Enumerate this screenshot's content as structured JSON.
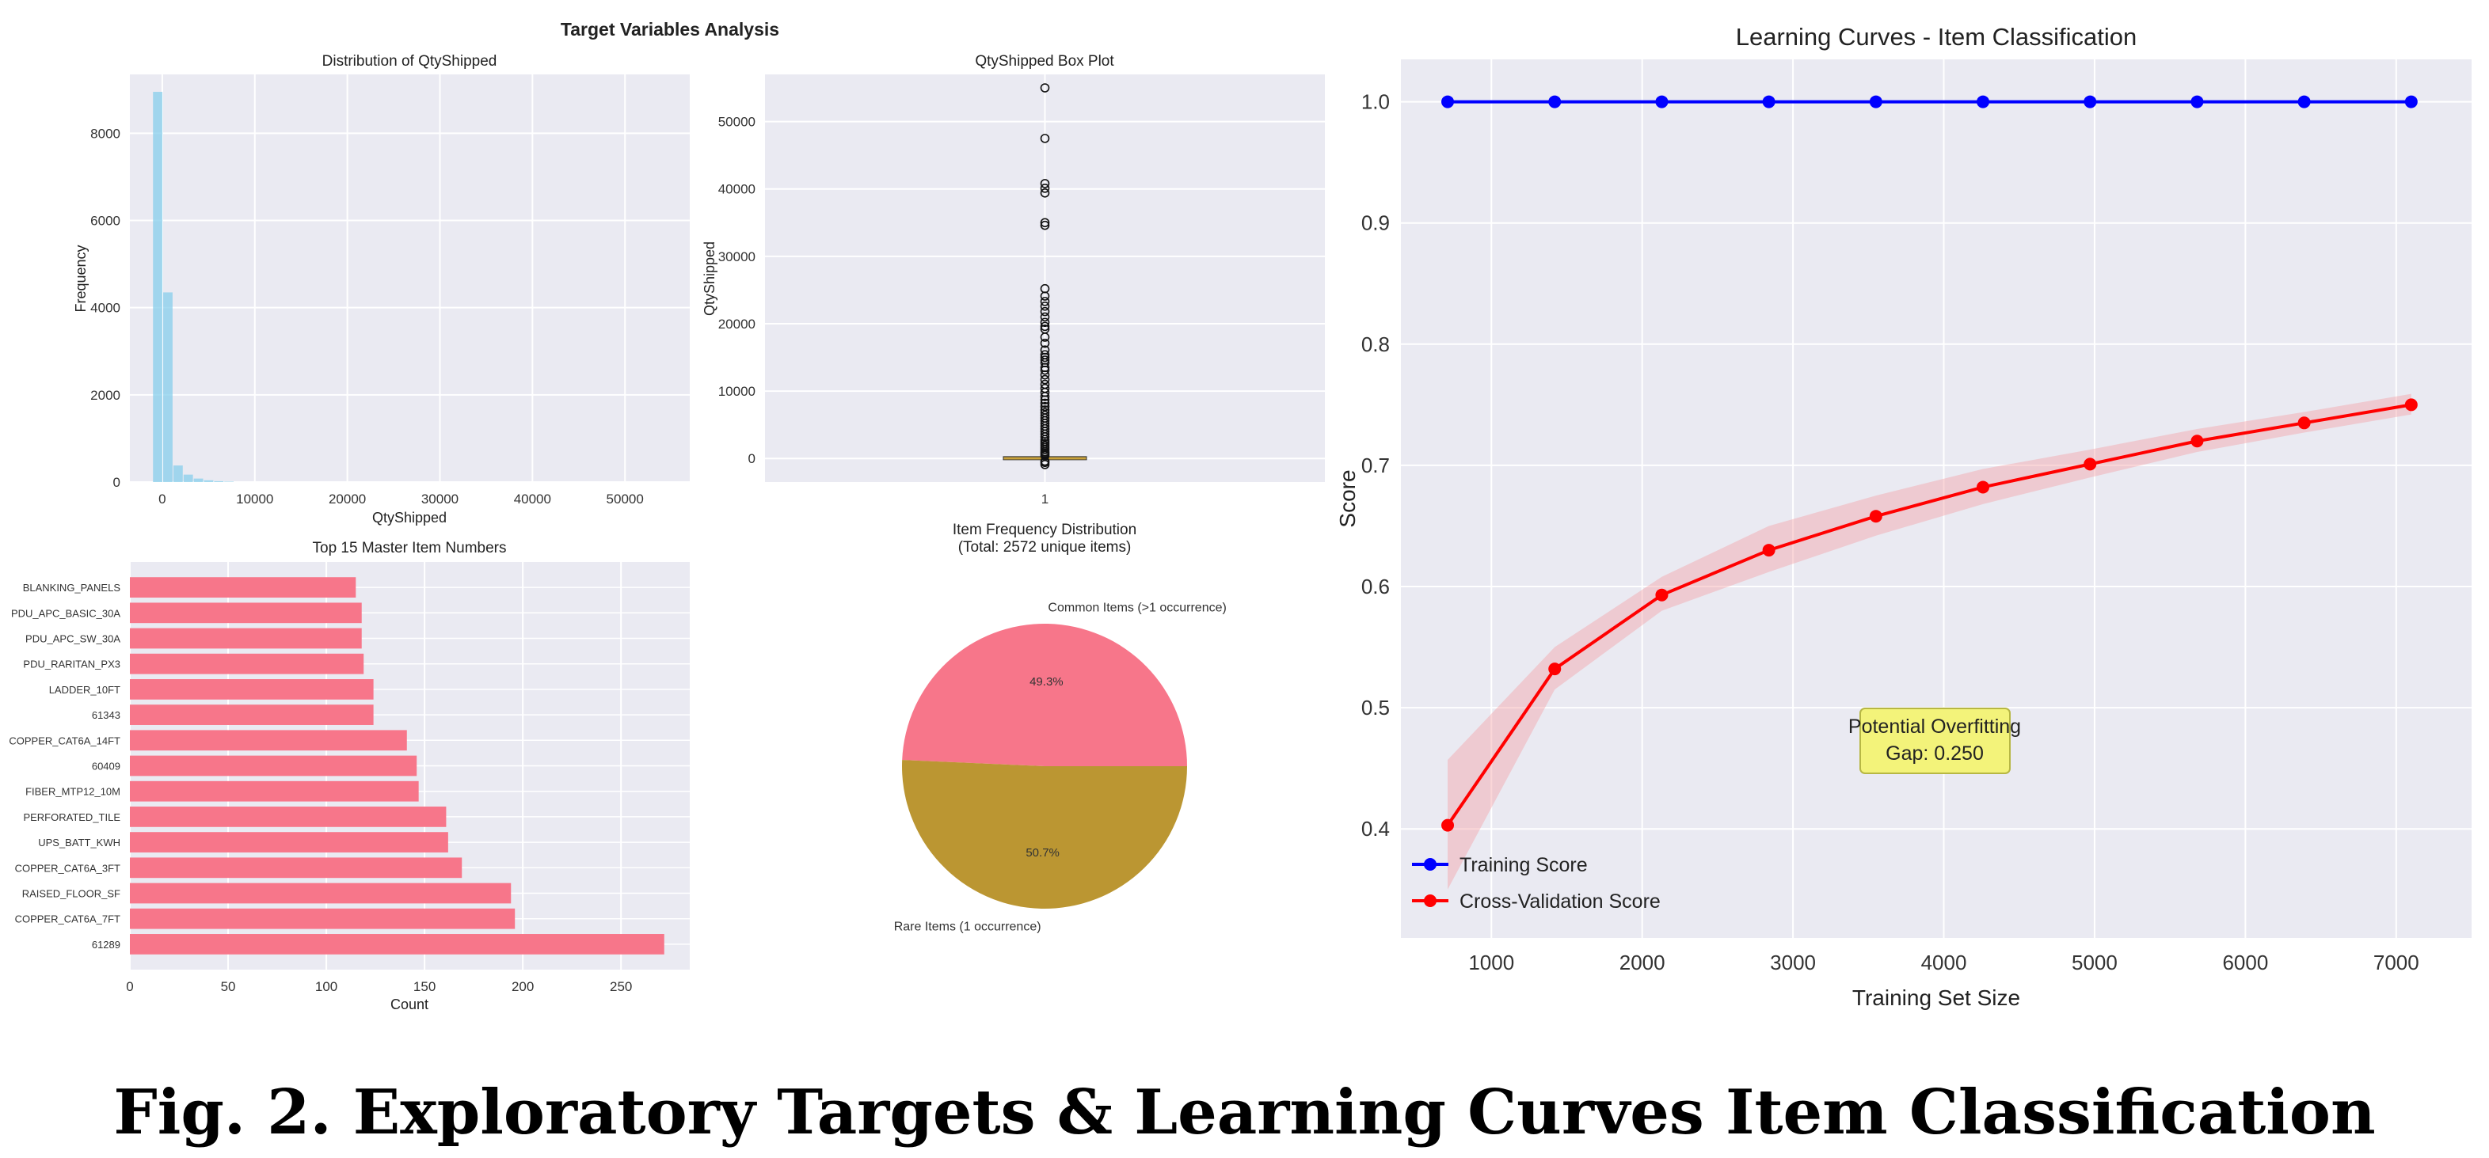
{
  "colors": {
    "panel_bg": "#eaeaf2",
    "grid": "#ffffff",
    "hist": "#87ceeb",
    "box_median": "#c8a13a",
    "barh": "#f7768a",
    "pie": [
      "#f7768a",
      "#bb9632"
    ],
    "train": "#0000ff",
    "cv": "#ff0000",
    "cv_band": "#f4a3a8",
    "annotation_bg": "#f3f37a"
  },
  "figure_title": "Target Variables Analysis",
  "caption": "Fig. 2.  Exploratory Targets & Learning Curves Item Classification",
  "chart_data": [
    {
      "id": "hist",
      "type": "bar",
      "title": "Distribution of QtyShipped",
      "xlabel": "QtyShipped",
      "ylabel": "Frequency",
      "xlim": [
        -3500,
        57000
      ],
      "ylim": [
        0,
        9350
      ],
      "xticks": [
        0,
        10000,
        20000,
        30000,
        40000,
        50000
      ],
      "xtick_labels": [
        "0",
        "10000",
        "20000",
        "30000",
        "40000",
        "50000"
      ],
      "yticks": [
        0,
        2000,
        4000,
        6000,
        8000
      ],
      "ytick_labels": [
        "0",
        "2000",
        "4000",
        "6000",
        "8000"
      ],
      "bins": [
        {
          "x0": -1000,
          "x1": 100,
          "count": 8950
        },
        {
          "x0": 100,
          "x1": 1200,
          "count": 4350
        },
        {
          "x0": 1200,
          "x1": 2300,
          "count": 380
        },
        {
          "x0": 2300,
          "x1": 3400,
          "count": 170
        },
        {
          "x0": 3400,
          "x1": 4500,
          "count": 80
        },
        {
          "x0": 4500,
          "x1": 5600,
          "count": 40
        },
        {
          "x0": 5600,
          "x1": 6700,
          "count": 20
        },
        {
          "x0": 6700,
          "x1": 7800,
          "count": 10
        }
      ]
    },
    {
      "id": "box",
      "type": "box",
      "title": "QtyShipped Box Plot",
      "ylabel": "QtyShipped",
      "xtick_labels": [
        "1"
      ],
      "ylim": [
        -3500,
        57000
      ],
      "yticks": [
        0,
        10000,
        20000,
        30000,
        40000,
        50000
      ],
      "ytick_labels": [
        "0",
        "10000",
        "20000",
        "30000",
        "40000",
        "50000"
      ],
      "q1": 5,
      "median": 20,
      "q3": 100,
      "whisker_low": -200,
      "whisker_high": 250,
      "outliers": [
        55000,
        47500,
        40800,
        40100,
        39400,
        35000,
        34600,
        25200,
        24100,
        23300,
        22600,
        21800,
        21000,
        20200,
        19600,
        19200,
        18000,
        17100,
        16100,
        15400,
        15000,
        14600,
        14200,
        13500,
        13100,
        12400,
        11700,
        11000,
        10400,
        9800,
        9200,
        8700,
        8200,
        7700,
        7200,
        6800,
        6400,
        6000,
        5600,
        5200,
        4800,
        4400,
        4000,
        3600,
        3200,
        2800,
        2500,
        2200,
        1900,
        1600,
        1300,
        1000,
        800,
        600,
        400,
        -400,
        -600,
        -900
      ]
    },
    {
      "id": "barh",
      "type": "bar",
      "orientation": "horizontal",
      "title": "Top 15 Master Item Numbers",
      "xlabel": "Count",
      "xlim": [
        0,
        285
      ],
      "xticks": [
        0,
        50,
        100,
        150,
        200,
        250
      ],
      "xtick_labels": [
        "0",
        "50",
        "100",
        "150",
        "200",
        "250"
      ],
      "categories": [
        "61289",
        "COPPER_CAT6A_7FT",
        "RAISED_FLOOR_SF",
        "COPPER_CAT6A_3FT",
        "UPS_BATT_KWH",
        "PERFORATED_TILE",
        "FIBER_MTP12_10M",
        "60409",
        "COPPER_CAT6A_14FT",
        "61343",
        "LADDER_10FT",
        "PDU_RARITAN_PX3",
        "PDU_APC_SW_30A",
        "PDU_APC_BASIC_30A",
        "BLANKING_PANELS"
      ],
      "values": [
        272,
        196,
        194,
        169,
        162,
        161,
        147,
        146,
        141,
        124,
        124,
        119,
        118,
        118,
        115
      ]
    },
    {
      "id": "pie",
      "type": "pie",
      "title_lines": [
        "Item Frequency Distribution",
        "(Total: 2572 unique items)"
      ],
      "labels": [
        "Common Items (>1 occurrence)",
        "Rare Items (1 occurrence)"
      ],
      "values": [
        49.3,
        50.7
      ],
      "pct_labels": [
        "49.3%",
        "50.7%"
      ]
    },
    {
      "id": "learning",
      "type": "line",
      "title": "Learning Curves - Item Classification",
      "xlabel": "Training Set Size",
      "ylabel": "Score",
      "xlim": [
        400,
        7500
      ],
      "ylim": [
        0.31,
        1.035
      ],
      "xticks": [
        1000,
        2000,
        3000,
        4000,
        5000,
        6000,
        7000
      ],
      "xtick_labels": [
        "1000",
        "2000",
        "3000",
        "4000",
        "5000",
        "6000",
        "7000"
      ],
      "yticks": [
        0.4,
        0.5,
        0.6,
        0.7,
        0.8,
        0.9,
        1.0
      ],
      "ytick_labels": [
        "0.4",
        "0.5",
        "0.6",
        "0.7",
        "0.8",
        "0.9",
        "1.0"
      ],
      "x": [
        710,
        1420,
        2130,
        2840,
        3550,
        4260,
        4970,
        5680,
        6390,
        7100
      ],
      "series": [
        {
          "name": "Training Score",
          "values": [
            1.0,
            1.0,
            1.0,
            1.0,
            1.0,
            1.0,
            1.0,
            1.0,
            1.0,
            1.0
          ]
        },
        {
          "name": "Cross-Validation Score",
          "values": [
            0.403,
            0.532,
            0.593,
            0.63,
            0.658,
            0.682,
            0.701,
            0.72,
            0.735,
            0.75
          ],
          "lower": [
            0.35,
            0.515,
            0.58,
            0.612,
            0.642,
            0.668,
            0.69,
            0.711,
            0.727,
            0.742
          ],
          "upper": [
            0.457,
            0.55,
            0.608,
            0.65,
            0.675,
            0.697,
            0.713,
            0.73,
            0.744,
            0.759
          ]
        }
      ],
      "annotation_lines": [
        "Potential Overfitting",
        "Gap: 0.250"
      ],
      "legend": "lower-left",
      "grid": true
    }
  ]
}
